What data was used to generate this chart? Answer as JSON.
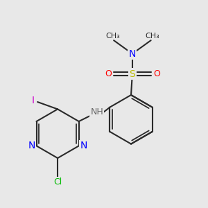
{
  "bg_color": "#e8e8e8",
  "bond_color": "#2a2a2a",
  "bond_width": 1.5,
  "atom_colors": {
    "N": "#0000ff",
    "Cl": "#00bb00",
    "I": "#cc00cc",
    "O": "#ff0000",
    "S": "#bbbb00",
    "NH": "#666666",
    "C": "#2a2a2a"
  },
  "font_size": 9,
  "fig_size": [
    3.0,
    3.0
  ],
  "xlim": [
    0.5,
    8.5
  ],
  "ylim": [
    0.8,
    8.5
  ]
}
